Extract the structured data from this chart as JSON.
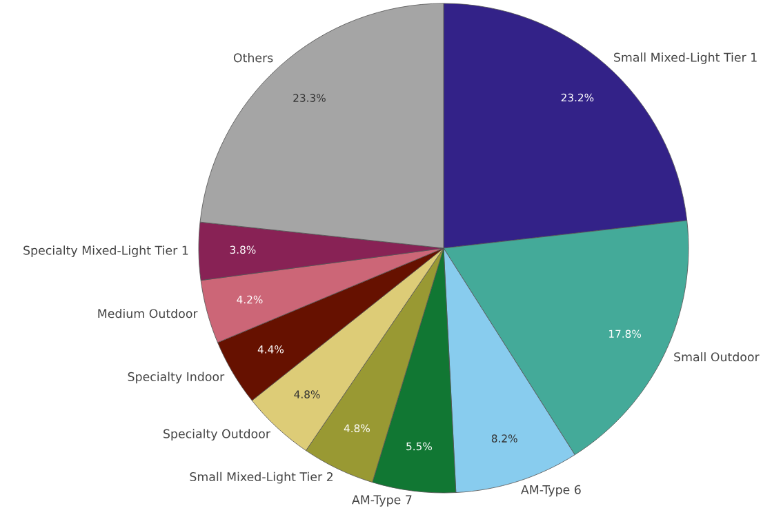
{
  "chart_data": {
    "type": "pie",
    "categories": [
      "Small Mixed-Light Tier 1",
      "Small Outdoor",
      "AM-Type 6",
      "AM-Type 7",
      "Small Mixed-Light Tier 2",
      "Specialty Outdoor",
      "Specialty Indoor",
      "Medium Outdoor",
      "Specialty Mixed-Light Tier 1",
      "Others"
    ],
    "values": [
      23.2,
      17.8,
      8.2,
      5.5,
      4.8,
      4.8,
      4.4,
      4.2,
      3.8,
      23.3
    ],
    "value_labels": [
      "23.2%",
      "17.8%",
      "8.2%",
      "5.5%",
      "4.8%",
      "4.8%",
      "4.4%",
      "4.2%",
      "3.8%",
      "23.3%"
    ],
    "colors": [
      "#332288",
      "#44aa99",
      "#88ccee",
      "#117733",
      "#999933",
      "#ddcc77",
      "#661100",
      "#cc6677",
      "#882255",
      "#a5a5a5"
    ]
  }
}
